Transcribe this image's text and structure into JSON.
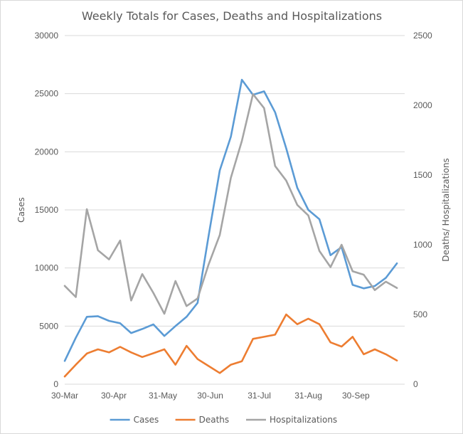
{
  "chart_data": {
    "type": "line",
    "title": "Weekly Totals for Cases, Deaths and Hospitalizations",
    "ylabel_left": "Cases",
    "ylabel_right": "Deaths/ Hospitalizations",
    "ylim_left": [
      0,
      30000
    ],
    "ylim_right": [
      0,
      2500
    ],
    "yticks_left": [
      "0",
      "5000",
      "10000",
      "15000",
      "20000",
      "25000",
      "30000"
    ],
    "yticks_right": [
      "0",
      "500",
      "1000",
      "1500",
      "2000",
      "2500"
    ],
    "x_tick_labels": [
      "30-Mar",
      "30-Apr",
      "31-May",
      "30-Jun",
      "31-Jul",
      "31-Aug",
      "30-Sep"
    ],
    "x_tick_indices": [
      0,
      4.43,
      8.86,
      13.14,
      17.57,
      22,
      26.29
    ],
    "x_max_index": 30.7,
    "grid": true,
    "legend_position": "bottom",
    "series": [
      {
        "name": "Cases",
        "axis": "left",
        "color": "#5b9bd5",
        "values": [
          2000,
          4000,
          5800,
          5850,
          5450,
          5250,
          4400,
          4750,
          5150,
          4150,
          5000,
          5800,
          7000,
          12800,
          18400,
          21300,
          26200,
          24900,
          25200,
          23400,
          20300,
          16900,
          15000,
          14200,
          11100,
          11800,
          8550,
          8250,
          8450,
          9150,
          10400
        ]
      },
      {
        "name": "Deaths",
        "axis": "right",
        "color": "#ed7d31",
        "values": [
          55,
          140,
          220,
          250,
          228,
          268,
          228,
          195,
          222,
          250,
          140,
          275,
          180,
          130,
          80,
          140,
          165,
          325,
          340,
          355,
          500,
          430,
          470,
          430,
          300,
          270,
          340,
          215,
          250,
          215,
          170
        ]
      },
      {
        "name": "Hospitalizations",
        "axis": "right",
        "color": "#a5a5a5",
        "values": [
          705,
          625,
          1255,
          960,
          895,
          1030,
          600,
          790,
          655,
          505,
          740,
          560,
          615,
          860,
          1070,
          1480,
          1745,
          2080,
          1980,
          1565,
          1460,
          1285,
          1210,
          955,
          840,
          1000,
          810,
          785,
          675,
          735,
          690
        ]
      }
    ]
  }
}
